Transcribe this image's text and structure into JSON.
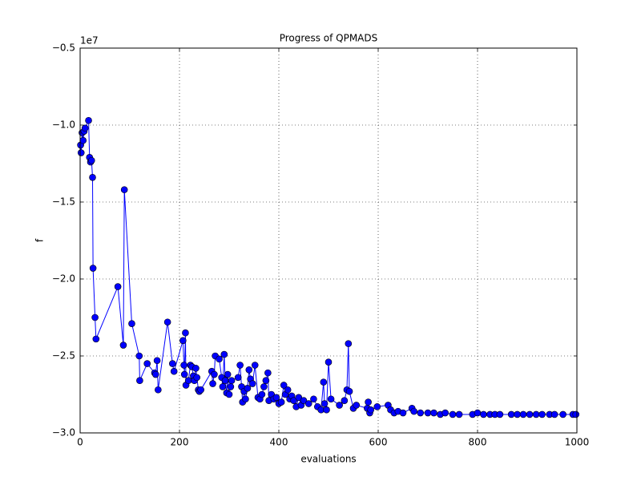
{
  "chart_data": {
    "type": "line",
    "title": "Progress of QPMADS",
    "x_label": "evaluations",
    "y_label": "f",
    "y_offset_label": "1e7",
    "xlim": [
      0,
      1000
    ],
    "xticks": [
      0,
      200,
      400,
      600,
      800,
      1000
    ],
    "ylim": [
      -3.0,
      -0.5
    ],
    "yticks": [
      {
        "value": -3.0,
        "label": "−3.0"
      },
      {
        "value": -2.5,
        "label": "−2.5"
      },
      {
        "value": -2.0,
        "label": "−2.0"
      },
      {
        "value": -1.5,
        "label": "−1.5"
      },
      {
        "value": -1.0,
        "label": "−1.0"
      },
      {
        "value": -0.5,
        "label": "−0.5"
      }
    ],
    "grid": true,
    "color": "#0000ff",
    "x": [
      1,
      2,
      4,
      6,
      8,
      10,
      17,
      19,
      21,
      23,
      25,
      26,
      30,
      32,
      76,
      87,
      89,
      104,
      119,
      120,
      135,
      150,
      152,
      155,
      157,
      176,
      186,
      189,
      207,
      209,
      210,
      212,
      213,
      218,
      222,
      225,
      228,
      230,
      233,
      235,
      238,
      240,
      243,
      265,
      267,
      270,
      272,
      280,
      285,
      287,
      290,
      292,
      295,
      297,
      300,
      303,
      305,
      318,
      322,
      325,
      327,
      330,
      333,
      337,
      340,
      343,
      347,
      352,
      358,
      362,
      366,
      370,
      374,
      378,
      380,
      385,
      390,
      395,
      400,
      405,
      410,
      413,
      418,
      422,
      426,
      430,
      435,
      440,
      445,
      450,
      460,
      470,
      478,
      485,
      490,
      492,
      496,
      500,
      505,
      522,
      532,
      537,
      540,
      542,
      550,
      556,
      578,
      580,
      583,
      585,
      598,
      620,
      625,
      632,
      640,
      650,
      668,
      672,
      685,
      700,
      712,
      725,
      735,
      750,
      763,
      790,
      800,
      812,
      825,
      835,
      845,
      868,
      880,
      892,
      905,
      918,
      930,
      945,
      955,
      972,
      992,
      998
    ],
    "values": [
      -1.13,
      -1.18,
      -1.05,
      -1.1,
      -1.04,
      -1.02,
      -0.97,
      -1.21,
      -1.24,
      -1.23,
      -1.34,
      -1.93,
      -2.25,
      -2.39,
      -2.05,
      -2.43,
      -1.42,
      -2.29,
      -2.5,
      -2.66,
      -2.55,
      -2.61,
      -2.62,
      -2.53,
      -2.72,
      -2.28,
      -2.55,
      -2.6,
      -2.4,
      -2.56,
      -2.62,
      -2.35,
      -2.69,
      -2.66,
      -2.56,
      -2.57,
      -2.63,
      -2.66,
      -2.58,
      -2.64,
      -2.72,
      -2.73,
      -2.72,
      -2.6,
      -2.68,
      -2.62,
      -2.5,
      -2.52,
      -2.64,
      -2.7,
      -2.49,
      -2.66,
      -2.74,
      -2.62,
      -2.75,
      -2.7,
      -2.66,
      -2.64,
      -2.56,
      -2.7,
      -2.8,
      -2.73,
      -2.78,
      -2.71,
      -2.59,
      -2.65,
      -2.68,
      -2.56,
      -2.77,
      -2.78,
      -2.75,
      -2.7,
      -2.66,
      -2.61,
      -2.79,
      -2.75,
      -2.78,
      -2.77,
      -2.81,
      -2.8,
      -2.69,
      -2.75,
      -2.72,
      -2.78,
      -2.76,
      -2.79,
      -2.83,
      -2.77,
      -2.82,
      -2.79,
      -2.81,
      -2.78,
      -2.83,
      -2.85,
      -2.67,
      -2.81,
      -2.85,
      -2.54,
      -2.78,
      -2.82,
      -2.79,
      -2.72,
      -2.42,
      -2.73,
      -2.84,
      -2.82,
      -2.84,
      -2.8,
      -2.87,
      -2.85,
      -2.83,
      -2.82,
      -2.85,
      -2.87,
      -2.86,
      -2.87,
      -2.84,
      -2.86,
      -2.87,
      -2.87,
      -2.87,
      -2.88,
      -2.87,
      -2.88,
      -2.88,
      -2.88,
      -2.87,
      -2.88,
      -2.88,
      -2.88,
      -2.88,
      -2.88,
      -2.88,
      -2.88,
      -2.88,
      -2.88,
      -2.88,
      -2.88,
      -2.88,
      -2.88,
      -2.88,
      -2.88
    ]
  }
}
